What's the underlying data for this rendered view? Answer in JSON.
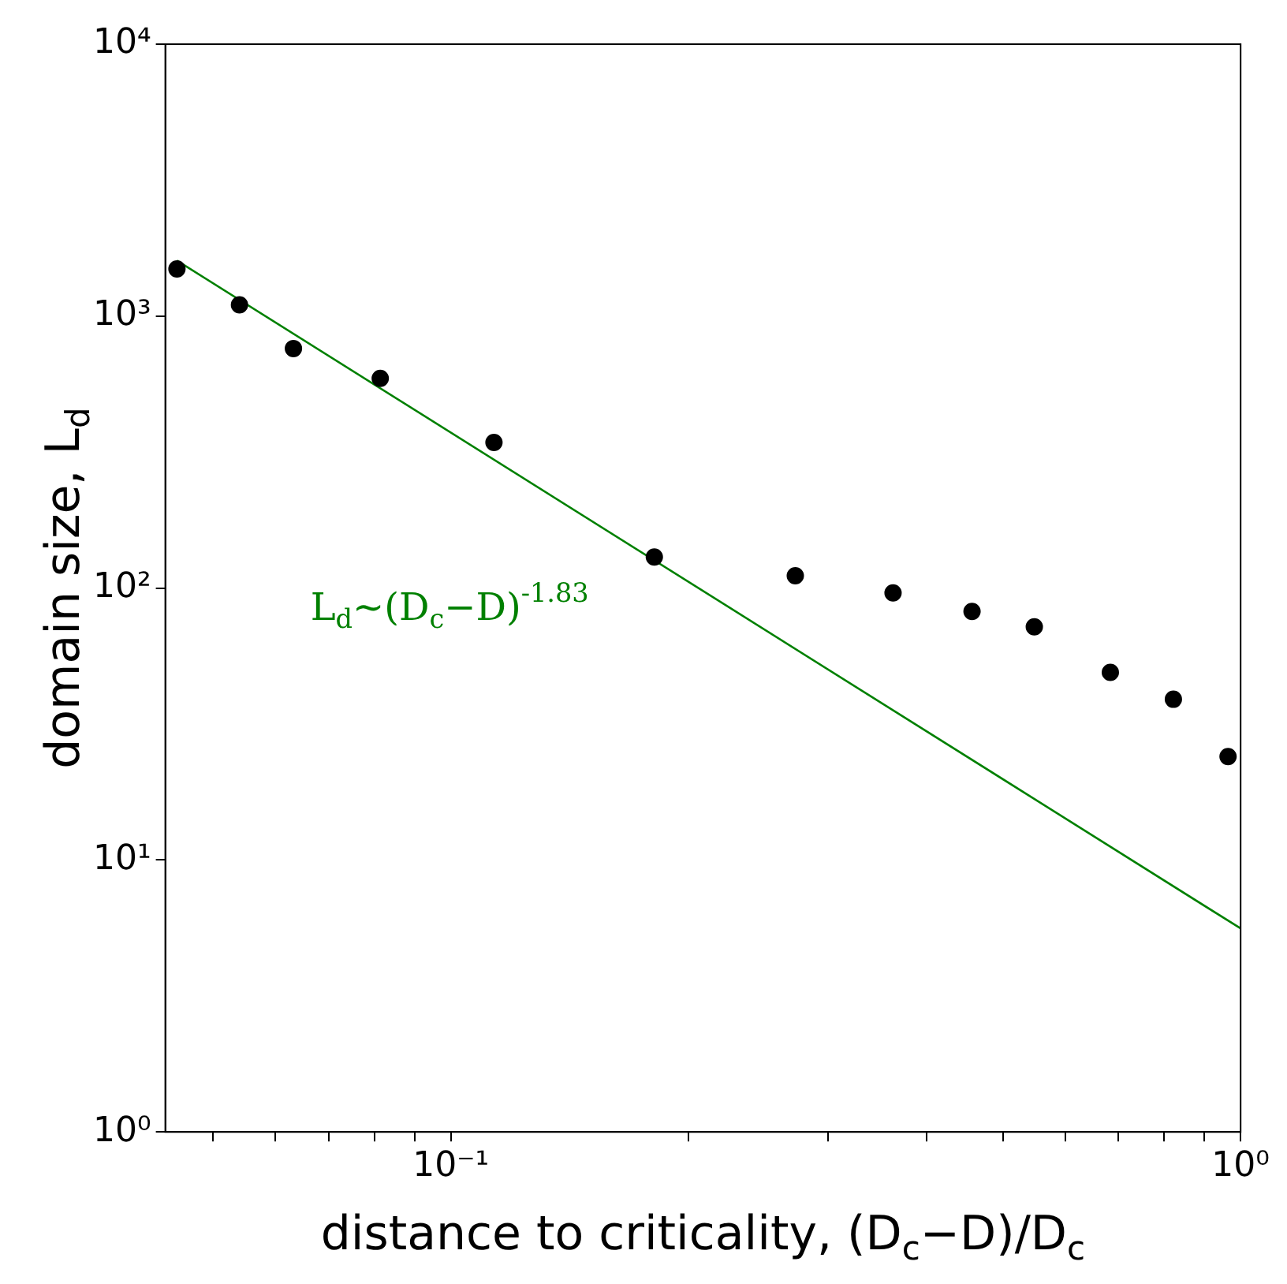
{
  "chart_data": {
    "type": "scatter",
    "log": "xy",
    "xlabel": "distance to criticality, (D$_{c}$−D)/D$_{c}$",
    "ylabel": "domain size, L$_{d}$",
    "xlim": [
      0.0435,
      1
    ],
    "ylim": [
      1,
      10000
    ],
    "xticks": [
      {
        "value": 0.05,
        "label": null
      },
      {
        "value": 0.06,
        "label": null
      },
      {
        "value": 0.07,
        "label": null
      },
      {
        "value": 0.08,
        "label": null
      },
      {
        "value": 0.09,
        "label": null
      },
      {
        "value": 0.1,
        "label": "10⁻¹"
      },
      {
        "value": 0.2,
        "label": null
      },
      {
        "value": 0.3,
        "label": null
      },
      {
        "value": 0.4,
        "label": null
      },
      {
        "value": 0.5,
        "label": null
      },
      {
        "value": 0.6,
        "label": null
      },
      {
        "value": 0.7,
        "label": null
      },
      {
        "value": 0.8,
        "label": null
      },
      {
        "value": 0.9,
        "label": null
      },
      {
        "value": 1,
        "label": "10⁰"
      }
    ],
    "yticks": [
      {
        "value": 1,
        "label": "10⁰"
      },
      {
        "value": 10,
        "label": "10¹"
      },
      {
        "value": 100,
        "label": "10²"
      },
      {
        "value": 1000,
        "label": "10³"
      },
      {
        "value": 10000,
        "label": "10⁴"
      }
    ],
    "annotations": [
      "L$_{d}$∼(D$_{c}$−D)$^{-1.83}$"
    ],
    "series": [
      {
        "color": "#000000",
        "marker": "circle",
        "x": [
          0.045,
          0.054,
          0.0632,
          0.0814,
          0.1134,
          0.181,
          0.273,
          0.363,
          0.457,
          0.548,
          0.684,
          0.822,
          0.964
        ],
        "values": [
          1490,
          1100,
          760,
          590,
          343,
          130,
          111,
          96,
          82,
          72,
          49,
          39,
          24
        ]
      },
      {
        "type": "line",
        "color": "#008000",
        "marker": "none",
        "line_style": "solid",
        "x": [
          0.045,
          1
        ],
        "values": [
          1600,
          5.6
        ]
      }
    ]
  }
}
